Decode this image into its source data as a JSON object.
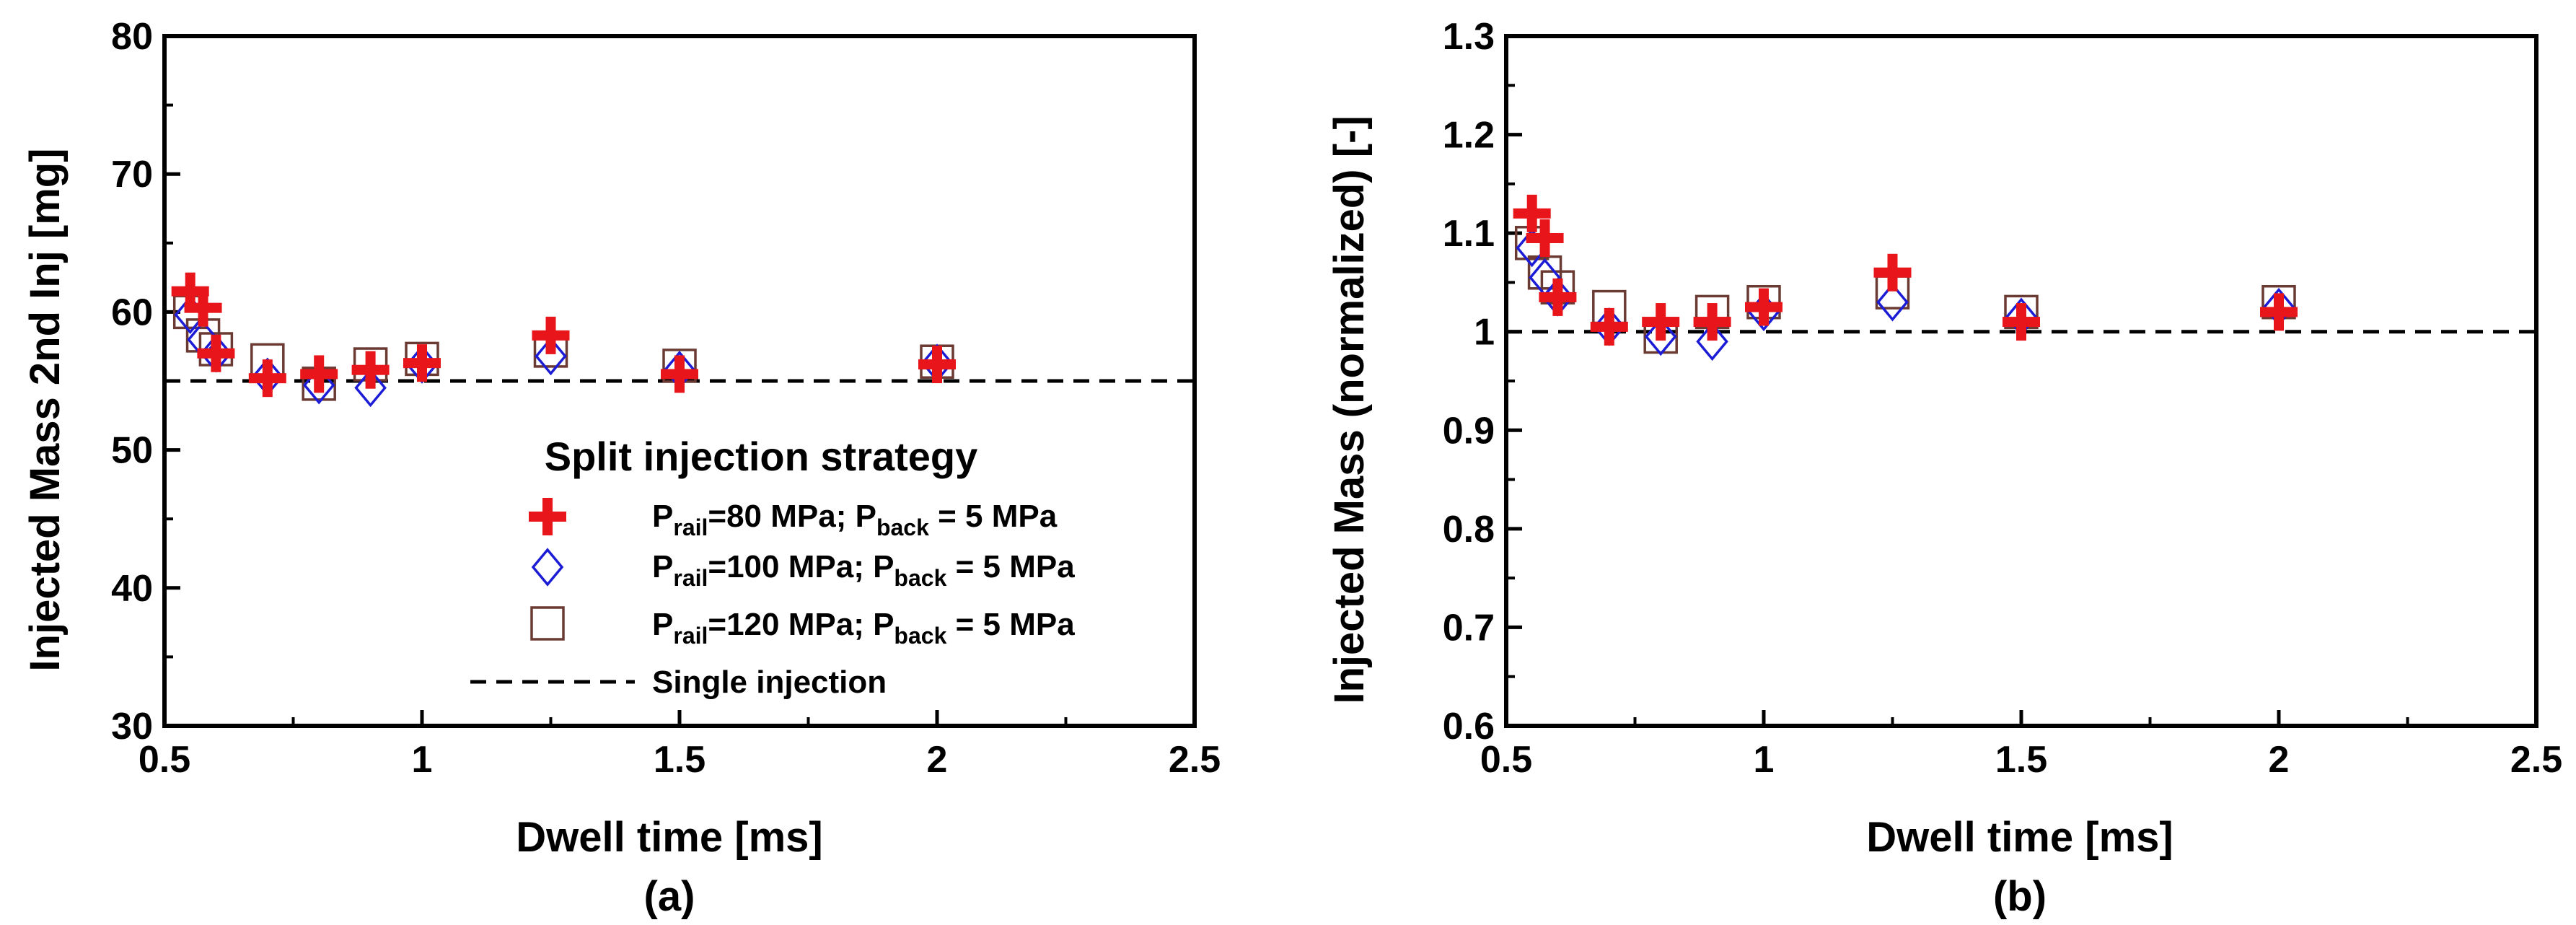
{
  "chart_data": [
    {
      "type": "scatter",
      "panel_label": "(a)",
      "xlabel": "Dwell time [ms]",
      "ylabel": "Injected Mass 2nd Inj [mg]",
      "xlim": [
        0.5,
        2.5
      ],
      "ylim": [
        30,
        80
      ],
      "xticks": [
        0.5,
        1,
        1.5,
        2,
        2.5
      ],
      "xtick_labels": [
        "0.5",
        "1",
        "1.5",
        "2",
        "2.5"
      ],
      "yticks": [
        30,
        40,
        50,
        60,
        70,
        80
      ],
      "ytick_labels": [
        "30",
        "40",
        "50",
        "60",
        "70",
        "80"
      ],
      "legend_title": "Split injection strategy",
      "series": [
        {
          "name": "Prail=80 MPa; Pback = 5 MPa",
          "p_rail": "rail",
          "val1": "=80 MPa; P",
          "p_back": "back",
          "val2": " = 5 MPa",
          "marker": "plus",
          "color": "#e8151b",
          "x": [
            0.55,
            0.575,
            0.6,
            0.7,
            0.8,
            0.9,
            1.0,
            1.25,
            1.5,
            2.0
          ],
          "y": [
            61.5,
            60.3,
            57.0,
            55.2,
            55.5,
            55.8,
            56.3,
            58.3,
            55.5,
            56.2
          ]
        },
        {
          "name": "Prail=100 MPa; Pback = 5 MPa",
          "p_rail": "rail",
          "val1": "=100 MPa; P",
          "p_back": "back",
          "val2": " = 5 MPa",
          "marker": "diamond",
          "color": "#1c1cd6",
          "x": [
            0.55,
            0.575,
            0.6,
            0.7,
            0.8,
            0.9,
            1.0,
            1.25,
            1.5,
            2.0
          ],
          "y": [
            59.8,
            58.0,
            57.0,
            55.3,
            54.7,
            54.5,
            56.2,
            56.8,
            55.8,
            56.3
          ]
        },
        {
          "name": "Prail=120 MPa; Pback = 5 MPa",
          "p_rail": "rail",
          "val1": "=120 MPa; P",
          "p_back": "back",
          "val2": " = 5 MPa",
          "marker": "square",
          "color": "#6b3a33",
          "x": [
            0.55,
            0.575,
            0.6,
            0.7,
            0.8,
            0.9,
            1.0,
            1.25,
            1.5,
            2.0
          ],
          "y": [
            60.0,
            58.3,
            57.3,
            56.5,
            54.8,
            56.2,
            56.6,
            57.2,
            56.1,
            56.4
          ]
        }
      ],
      "reference_line": {
        "name": "Single injection",
        "y": 55,
        "style": "dashed",
        "color": "#000000"
      }
    },
    {
      "type": "scatter",
      "panel_label": "(b)",
      "xlabel": "Dwell time [ms]",
      "ylabel": "Injected Mass (normalized) [-]",
      "xlim": [
        0.5,
        2.5
      ],
      "ylim": [
        0.6,
        1.3
      ],
      "xticks": [
        0.5,
        1,
        1.5,
        2,
        2.5
      ],
      "xtick_labels": [
        "0.5",
        "1",
        "1.5",
        "2",
        "2.5"
      ],
      "yticks": [
        0.6,
        0.7,
        0.8,
        0.9,
        1.0,
        1.1,
        1.2,
        1.3
      ],
      "ytick_labels": [
        "0.6",
        "0.7",
        "0.8",
        "0.9",
        "1",
        "1.1",
        "1.2",
        "1.3"
      ],
      "series": [
        {
          "name": "Prail=80 MPa; Pback = 5 MPa",
          "marker": "plus",
          "color": "#e8151b",
          "x": [
            0.55,
            0.575,
            0.6,
            0.7,
            0.8,
            0.9,
            1.0,
            1.25,
            1.5,
            2.0
          ],
          "y": [
            1.12,
            1.095,
            1.035,
            1.005,
            1.01,
            1.01,
            1.025,
            1.06,
            1.01,
            1.02
          ]
        },
        {
          "name": "Prail=100 MPa; Pback = 5 MPa",
          "marker": "diamond",
          "color": "#1c1cd6",
          "x": [
            0.55,
            0.575,
            0.6,
            0.7,
            0.8,
            0.9,
            1.0,
            1.25,
            1.5,
            2.0
          ],
          "y": [
            1.085,
            1.055,
            1.035,
            1.005,
            0.995,
            0.99,
            1.02,
            1.03,
            1.015,
            1.025
          ]
        },
        {
          "name": "Prail=120 MPa; Pback = 5 MPa",
          "marker": "square",
          "color": "#6b3a33",
          "x": [
            0.55,
            0.575,
            0.6,
            0.7,
            0.8,
            0.9,
            1.0,
            1.25,
            1.5,
            2.0
          ],
          "y": [
            1.09,
            1.06,
            1.045,
            1.025,
            0.995,
            1.02,
            1.03,
            1.04,
            1.02,
            1.03
          ]
        }
      ],
      "reference_line": {
        "name": "Single injection",
        "y": 1.0,
        "style": "dashed",
        "color": "#000000"
      }
    }
  ]
}
